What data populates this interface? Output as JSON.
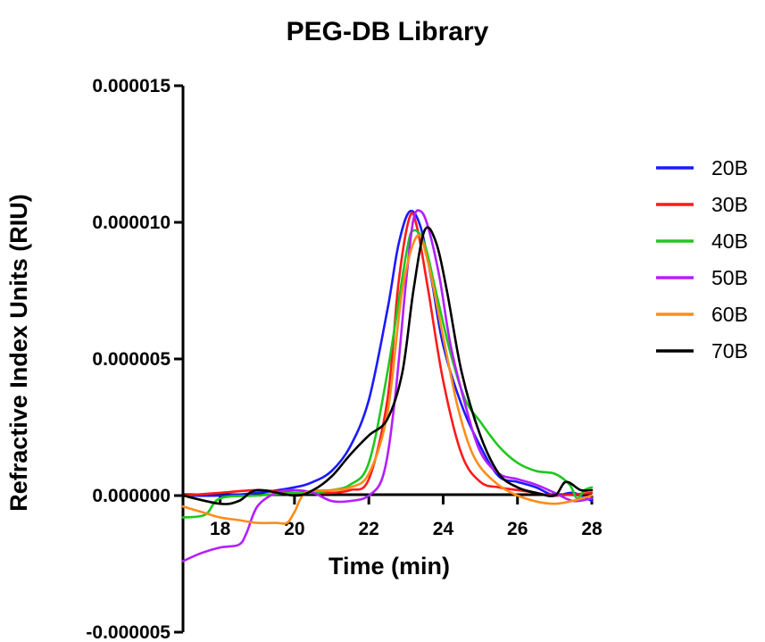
{
  "chart_data": {
    "type": "line",
    "title": "PEG-DB Library",
    "xlabel": "Time (min)",
    "ylabel": "Refractive Index Units (RIU)",
    "xlim": [
      17,
      28
    ],
    "ylim": [
      -5e-06,
      1.5e-05
    ],
    "x_ticks": [
      18,
      20,
      22,
      24,
      26,
      28
    ],
    "x_tick_labels": [
      "18",
      "20",
      "22",
      "24",
      "26",
      "28"
    ],
    "y_ticks": [
      -5e-06,
      0,
      5e-06,
      1e-05,
      1.5e-05
    ],
    "y_tick_labels": [
      "-0.000005",
      "0.000000",
      "0.000005",
      "0.000010",
      "0.000015"
    ],
    "legend_position": "right",
    "grid": false,
    "series": [
      {
        "name": "20B",
        "color": "#1a1aff",
        "points": [
          [
            17,
            0
          ],
          [
            18,
            0
          ],
          [
            19,
            1e-07
          ],
          [
            20,
            3e-07
          ],
          [
            20.5,
            5e-07
          ],
          [
            21,
            9e-07
          ],
          [
            21.5,
            1.8e-06
          ],
          [
            22,
            3.5e-06
          ],
          [
            22.5,
            6.8e-06
          ],
          [
            22.8,
            9.2e-06
          ],
          [
            23.1,
            1.04e-05
          ],
          [
            23.4,
            9.8e-06
          ],
          [
            23.7,
            7.8e-06
          ],
          [
            24,
            5.5e-06
          ],
          [
            24.5,
            3.3e-06
          ],
          [
            25,
            1.8e-06
          ],
          [
            25.5,
            7e-07
          ],
          [
            26,
            5e-07
          ],
          [
            26.5,
            3e-07
          ],
          [
            27,
            0
          ],
          [
            27.5,
            1e-07
          ],
          [
            28,
            -2e-07
          ]
        ]
      },
      {
        "name": "30B",
        "color": "#ff1a1a",
        "points": [
          [
            17,
            0
          ],
          [
            18,
            1e-07
          ],
          [
            19,
            2e-07
          ],
          [
            20,
            1e-07
          ],
          [
            20.5,
            1e-07
          ],
          [
            21,
            1e-07
          ],
          [
            21.5,
            2e-07
          ],
          [
            22,
            6e-07
          ],
          [
            22.5,
            3.5e-06
          ],
          [
            22.8,
            7.8e-06
          ],
          [
            23.1,
            1.02e-05
          ],
          [
            23.3,
            9.8e-06
          ],
          [
            23.6,
            7.5e-06
          ],
          [
            24,
            4.2e-06
          ],
          [
            24.5,
            1.5e-06
          ],
          [
            25,
            5e-07
          ],
          [
            25.5,
            3e-07
          ],
          [
            26,
            2e-07
          ],
          [
            26.5,
            1e-07
          ],
          [
            27,
            0
          ],
          [
            28,
            1e-07
          ]
        ]
      },
      {
        "name": "40B",
        "color": "#1ec81e",
        "points": [
          [
            17,
            -8e-07
          ],
          [
            17.6,
            -7e-07
          ],
          [
            18,
            -1e-07
          ],
          [
            19,
            0
          ],
          [
            20,
            1e-07
          ],
          [
            20.5,
            1e-07
          ],
          [
            21,
            2e-07
          ],
          [
            21.5,
            4e-07
          ],
          [
            22,
            1.2e-06
          ],
          [
            22.5,
            4.5e-06
          ],
          [
            23,
            8.8e-06
          ],
          [
            23.2,
            9.7e-06
          ],
          [
            23.5,
            9.2e-06
          ],
          [
            23.8,
            7.5e-06
          ],
          [
            24.2,
            5.2e-06
          ],
          [
            24.6,
            3.5e-06
          ],
          [
            25,
            2.7e-06
          ],
          [
            25.5,
            1.8e-06
          ],
          [
            26,
            1.2e-06
          ],
          [
            26.5,
            9e-07
          ],
          [
            27,
            8e-07
          ],
          [
            27.4,
            4e-07
          ],
          [
            27.6,
            -1e-07
          ],
          [
            27.8,
            2e-07
          ],
          [
            28,
            3e-07
          ]
        ]
      },
      {
        "name": "50B",
        "color": "#b41eff",
        "points": [
          [
            17,
            -2.4e-06
          ],
          [
            17.5,
            -2.1e-06
          ],
          [
            18,
            -1.9e-06
          ],
          [
            18.5,
            -1.8e-06
          ],
          [
            18.7,
            -1.4e-06
          ],
          [
            19,
            -4e-07
          ],
          [
            19.5,
            1e-07
          ],
          [
            20,
            2e-07
          ],
          [
            20.5,
            1e-07
          ],
          [
            21,
            -2e-07
          ],
          [
            21.5,
            -2e-07
          ],
          [
            22,
            0
          ],
          [
            22.4,
            8e-07
          ],
          [
            22.7,
            3.5e-06
          ],
          [
            23,
            7.8e-06
          ],
          [
            23.2,
            1.01e-05
          ],
          [
            23.4,
            1.04e-05
          ],
          [
            23.6,
            9.8e-06
          ],
          [
            23.9,
            8e-06
          ],
          [
            24.2,
            5.5e-06
          ],
          [
            24.6,
            3.3e-06
          ],
          [
            25,
            1.6e-06
          ],
          [
            25.5,
            8e-07
          ],
          [
            26,
            6e-07
          ],
          [
            26.5,
            4e-07
          ],
          [
            27,
            1e-07
          ],
          [
            27.5,
            -2e-07
          ],
          [
            28,
            -1e-07
          ]
        ]
      },
      {
        "name": "60B",
        "color": "#ff8c1a",
        "points": [
          [
            17,
            -4e-07
          ],
          [
            17.5,
            -6e-07
          ],
          [
            18,
            -8e-07
          ],
          [
            18.5,
            -9e-07
          ],
          [
            19,
            -1e-06
          ],
          [
            19.5,
            -1e-06
          ],
          [
            19.8,
            -1e-06
          ],
          [
            20,
            -6e-07
          ],
          [
            20.3,
            1e-07
          ],
          [
            21,
            2e-07
          ],
          [
            21.5,
            3e-07
          ],
          [
            22,
            8e-07
          ],
          [
            22.5,
            3e-06
          ],
          [
            22.9,
            7.5e-06
          ],
          [
            23.3,
            9.5e-06
          ],
          [
            23.6,
            8.5e-06
          ],
          [
            24,
            5.8e-06
          ],
          [
            24.4,
            3.2e-06
          ],
          [
            24.8,
            1.5e-06
          ],
          [
            25.3,
            6e-07
          ],
          [
            26,
            0
          ],
          [
            27,
            -3e-07
          ],
          [
            28,
            0
          ]
        ]
      },
      {
        "name": "70B",
        "color": "#000000",
        "points": [
          [
            17,
            0
          ],
          [
            18,
            -3e-07
          ],
          [
            18.5,
            -2e-07
          ],
          [
            19,
            2e-07
          ],
          [
            20,
            0
          ],
          [
            20.5,
            2e-07
          ],
          [
            21,
            7e-07
          ],
          [
            21.5,
            1.5e-06
          ],
          [
            22,
            2.2e-06
          ],
          [
            22.5,
            2.8e-06
          ],
          [
            22.9,
            4.5e-06
          ],
          [
            23.2,
            7.5e-06
          ],
          [
            23.5,
            9.7e-06
          ],
          [
            23.8,
            9.3e-06
          ],
          [
            24.1,
            7.5e-06
          ],
          [
            24.5,
            4.5e-06
          ],
          [
            25,
            2.2e-06
          ],
          [
            25.5,
            8e-07
          ],
          [
            26,
            3e-07
          ],
          [
            26.5,
            1e-07
          ],
          [
            27,
            0
          ],
          [
            27.3,
            5e-07
          ],
          [
            27.7,
            2e-07
          ],
          [
            28,
            2e-07
          ]
        ]
      }
    ]
  }
}
